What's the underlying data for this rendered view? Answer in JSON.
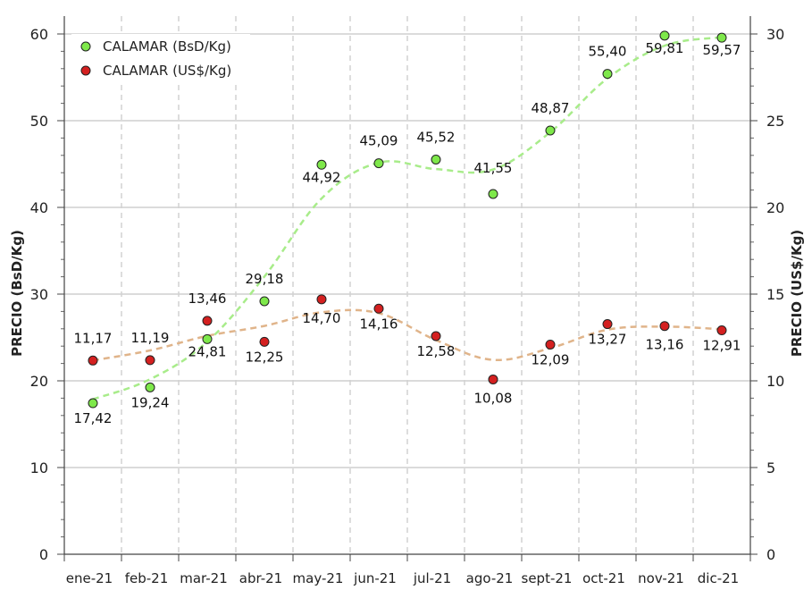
{
  "chart_data": {
    "type": "line",
    "categories": [
      "ene-21",
      "feb-21",
      "mar-21",
      "abr-21",
      "may-21",
      "jun-21",
      "jul-21",
      "ago-21",
      "sept-21",
      "oct-21",
      "nov-21",
      "dic-21"
    ],
    "series": [
      {
        "name": "CALAMAR (BsD/Kg)",
        "axis": "left",
        "color": "#7ee84a",
        "trend_color": "#a8ec8a",
        "values": [
          17.42,
          19.24,
          24.81,
          29.18,
          44.92,
          45.09,
          45.52,
          41.55,
          48.87,
          55.4,
          59.81,
          59.57
        ],
        "labels": [
          "17,42",
          "19,24",
          "24,81",
          "29,18",
          "44,92",
          "45,09",
          "45,52",
          "41,55",
          "48,87",
          "55,40",
          "59,81",
          "59,57"
        ]
      },
      {
        "name": "CALAMAR (US$/Kg)",
        "axis": "right",
        "color": "#d42020",
        "trend_color": "#e0b48a",
        "values": [
          11.17,
          11.19,
          13.46,
          12.25,
          14.7,
          14.16,
          12.58,
          10.08,
          12.09,
          13.27,
          13.16,
          12.91
        ],
        "labels": [
          "11,17",
          "11,19",
          "13,46",
          "12,25",
          "14,70",
          "14,16",
          "12,58",
          "10,08",
          "12,09",
          "13,27",
          "13,16",
          "12,91"
        ]
      }
    ],
    "ylabel": "PRECIO (BsD/Kg)",
    "y2label": "PRECIO (US$/Kg)",
    "ylim": [
      0,
      60
    ],
    "y2lim": [
      0,
      30
    ],
    "yticks": [
      "0",
      "10",
      "20",
      "30",
      "40",
      "50",
      "60"
    ],
    "y2ticks": [
      "0",
      "5",
      "10",
      "15",
      "20",
      "25",
      "30"
    ],
    "grid": true,
    "legend_position": "top-left"
  }
}
